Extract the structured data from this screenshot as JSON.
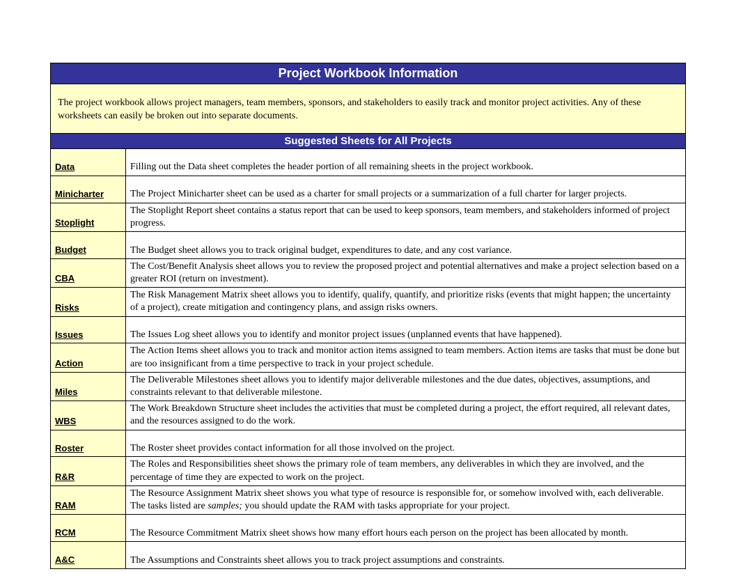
{
  "colors": {
    "header_bg": "#333399",
    "header_text": "#ffffff",
    "highlight_bg": "#ffffcc",
    "border": "#000000",
    "body_text": "#000000",
    "page_bg": "#ffffff"
  },
  "typography": {
    "title_font": "Arial",
    "title_size_pt": 14,
    "body_font": "Times New Roman",
    "body_size_pt": 11,
    "label_font": "Arial",
    "label_size_pt": 10
  },
  "title": "Project Workbook Information",
  "intro": "The project workbook allows project managers, team members, sponsors, and stakeholders to easily track and monitor project activities. Any of these worksheets can easily be broken out into separate documents.",
  "section_header": "Suggested Sheets for All Projects",
  "sheets": [
    {
      "label": "Data",
      "desc_html": "Filling out the Data sheet completes the header portion of all remaining sheets in the project workbook."
    },
    {
      "label": "Minicharter",
      "desc_html": "The Project Minicharter sheet can be used as a charter for small projects or a summarization of a full charter for larger projects."
    },
    {
      "label": "Stoplight",
      "desc_html": "The Stoplight Report sheet contains a status report that can be used to keep sponsors, team members, and stakeholders informed of project progress."
    },
    {
      "label": "Budget",
      "desc_html": "The Budget sheet allows you to track original budget, expenditures to date, and any cost variance."
    },
    {
      "label": "CBA",
      "desc_html": "The Cost/Benefit Analysis sheet allows you to review the proposed project and potential alternatives and make a project selection based on a greater ROI (return on investment)."
    },
    {
      "label": "Risks",
      "desc_html": "The Risk Management Matrix sheet allows you to identify, qualify, quantify, and prioritize risks (events that might happen; the uncertainty of a project), create mitigation and contingency plans, and assign risks owners."
    },
    {
      "label": "Issues",
      "desc_html": "The Issues Log sheet allows you to identify and monitor project issues (unplanned events that have happened)."
    },
    {
      "label": "Action",
      "desc_html": "The Action Items sheet allows you to track and monitor action items assigned to team members. Action items are tasks that must be done but are too insignificant from a time perspective to track in your project schedule."
    },
    {
      "label": "Miles",
      "desc_html": "The Deliverable Milestones sheet allows you to identify major deliverable milestones and the due dates, objectives, assumptions, and constraints relevant to that deliverable milestone."
    },
    {
      "label": "WBS",
      "desc_html": "The Work Breakdown Structure sheet includes the activities that must be completed during a project, the effort required, all relevant dates, and the resources assigned to do the work."
    },
    {
      "label": "Roster",
      "desc_html": "The Roster sheet provides contact information for all those involved on the project."
    },
    {
      "label": "R&R",
      "desc_html": "The Roles and Responsibilities sheet shows the primary role of team members, any deliverables in which they are involved, and the percentage of time they are expected to work on the project."
    },
    {
      "label": "RAM",
      "desc_html": "The Resource Assignment Matrix sheet shows you what type of resource is responsible for, or somehow involved with, each deliverable. The tasks listed are <span class=\"desc-italic\">samples;</span> you should update the RAM with tasks appropriate for your project."
    },
    {
      "label": "RCM",
      "desc_html": "The Resource Commitment Matrix sheet shows how many effort hours each person on the project has been allocated by month."
    },
    {
      "label": "A&C",
      "desc_html": "The Assumptions and Constraints sheet allows you to track project assumptions and constraints."
    }
  ]
}
